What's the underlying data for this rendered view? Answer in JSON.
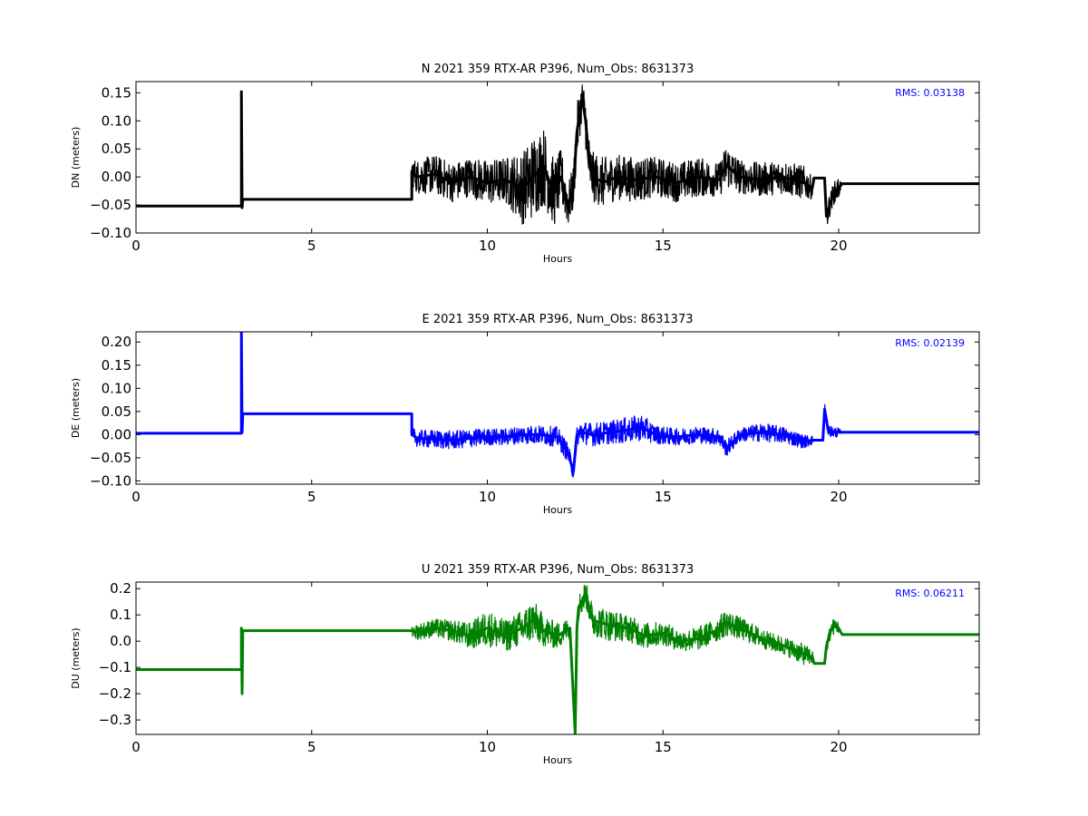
{
  "chart_data": [
    {
      "type": "line",
      "title": "N 2021 359 RTX-AR  P396, Num_Obs: 8631373",
      "xlabel": "Hours",
      "ylabel": "DN (meters)",
      "xlim": [
        0,
        24
      ],
      "ylim": [
        -0.1,
        0.17
      ],
      "xticks": [
        "0",
        "5",
        "10",
        "15",
        "20"
      ],
      "yticks": [
        "0.15",
        "0.10",
        "0.05",
        "0.00",
        "−0.05",
        "−0.10"
      ],
      "yticks_values": [
        0.15,
        0.1,
        0.05,
        0.0,
        -0.05,
        -0.1
      ],
      "color": "#000000",
      "annotation": "RMS:  0.03138",
      "annotation_color": "#0000ff",
      "series": [
        {
          "x": [
            0,
            3.0,
            3.0,
            3.02,
            3.04,
            3.06,
            7.85,
            7.85,
            8.0,
            8.5,
            9.0,
            9.5,
            10.0,
            10.5,
            11.0,
            11.3,
            11.6,
            11.9,
            12.1,
            12.3,
            12.45,
            12.55,
            12.7,
            12.8,
            12.9,
            13.0,
            13.3,
            13.7,
            14.2,
            14.8,
            15.4,
            16.0,
            16.6,
            16.8,
            17.2,
            17.8,
            18.4,
            19.0,
            19.25,
            19.3,
            19.6,
            19.65,
            19.75,
            19.85,
            20.0,
            20.1,
            20.15,
            24
          ],
          "y": [
            -0.052,
            -0.052,
            0.152,
            -0.055,
            -0.04,
            -0.04,
            -0.04,
            0.01,
            0.0,
            0.005,
            -0.01,
            0.0,
            -0.01,
            -0.005,
            -0.02,
            0.0,
            0.02,
            -0.03,
            0.0,
            -0.05,
            -0.02,
            0.08,
            0.14,
            0.1,
            0.02,
            0.0,
            -0.01,
            0.0,
            -0.005,
            0.0,
            -0.01,
            0.0,
            -0.005,
            0.02,
            0.0,
            -0.005,
            0.0,
            -0.01,
            -0.02,
            -0.002,
            -0.002,
            -0.07,
            -0.05,
            -0.03,
            -0.02,
            -0.012,
            -0.012,
            -0.012
          ],
          "envelope": [
            0,
            0,
            0,
            0,
            0,
            0,
            0,
            0.025,
            0.03,
            0.035,
            0.035,
            0.035,
            0.04,
            0.04,
            0.065,
            0.075,
            0.07,
            0.06,
            0.05,
            0.04,
            0.04,
            0.05,
            0.035,
            0.05,
            0.05,
            0.045,
            0.045,
            0.04,
            0.04,
            0.035,
            0.035,
            0.035,
            0.03,
            0.04,
            0.03,
            0.03,
            0.03,
            0.03,
            0.02,
            0,
            0,
            0.03,
            0.02,
            0.02,
            0.02,
            0,
            0,
            0
          ]
        }
      ]
    },
    {
      "type": "line",
      "title": "E 2021 359 RTX-AR  P396, Num_Obs: 8631373",
      "xlabel": "Hours",
      "ylabel": "DE (meters)",
      "xlim": [
        0,
        24
      ],
      "ylim": [
        -0.107,
        0.222
      ],
      "xticks": [
        "0",
        "5",
        "10",
        "15",
        "20"
      ],
      "yticks": [
        "0.20",
        "0.15",
        "0.10",
        "0.05",
        "0.00",
        "−0.05",
        "−0.10"
      ],
      "yticks_values": [
        0.2,
        0.15,
        0.1,
        0.05,
        0.0,
        -0.05,
        -0.1
      ],
      "color": "#0000ff",
      "annotation": "RMS:  0.02139",
      "annotation_color": "#0000ff",
      "series": [
        {
          "x": [
            0,
            3.0,
            3.0,
            3.02,
            3.04,
            3.06,
            7.85,
            7.85,
            8.0,
            8.5,
            9.0,
            9.5,
            10.0,
            10.5,
            11.0,
            11.5,
            12.0,
            12.3,
            12.45,
            12.55,
            12.7,
            13.0,
            13.5,
            14.0,
            14.4,
            14.8,
            15.4,
            16.0,
            16.6,
            16.8,
            17.2,
            17.8,
            18.4,
            19.0,
            19.25,
            19.3,
            19.55,
            19.6,
            19.7,
            19.85,
            20.0,
            20.1,
            20.15,
            24
          ],
          "y": [
            0.003,
            0.003,
            0.222,
            0.005,
            0.045,
            0.045,
            0.045,
            0.0,
            -0.008,
            -0.01,
            -0.012,
            -0.008,
            -0.005,
            -0.005,
            0.0,
            0.0,
            -0.005,
            -0.04,
            -0.08,
            0.0,
            0.005,
            0.0,
            0.005,
            0.01,
            0.015,
            0.0,
            -0.005,
            0.0,
            -0.005,
            -0.03,
            0.0,
            0.005,
            0.0,
            -0.015,
            -0.012,
            -0.012,
            -0.012,
            0.055,
            0.01,
            0.005,
            0.005,
            0.005,
            0.005,
            0.005
          ],
          "envelope": [
            0,
            0,
            0,
            0,
            0,
            0,
            0,
            0.015,
            0.018,
            0.02,
            0.02,
            0.02,
            0.018,
            0.018,
            0.02,
            0.02,
            0.022,
            0.02,
            0.02,
            0.025,
            0.025,
            0.025,
            0.025,
            0.028,
            0.028,
            0.02,
            0.018,
            0.018,
            0.018,
            0.018,
            0.015,
            0.02,
            0.018,
            0.015,
            0.01,
            0,
            0,
            0.015,
            0.012,
            0.012,
            0.01,
            0,
            0,
            0
          ]
        }
      ]
    },
    {
      "type": "line",
      "title": "U 2021 359 RTX-AR  P396, Num_Obs: 8631373",
      "xlabel": "Hours",
      "ylabel": "DU (meters)",
      "xlim": [
        0,
        24
      ],
      "ylim": [
        -0.355,
        0.225
      ],
      "xticks": [
        "0",
        "5",
        "10",
        "15",
        "20"
      ],
      "yticks": [
        "0.2",
        "0.1",
        "0.0",
        "−0.1",
        "−0.2",
        "−0.3"
      ],
      "yticks_values": [
        0.2,
        0.1,
        0.0,
        -0.1,
        -0.2,
        -0.3
      ],
      "color": "#008000",
      "annotation": "RMS:  0.06211",
      "annotation_color": "#0000ff",
      "series": [
        {
          "x": [
            0,
            3.0,
            3.0,
            3.02,
            3.04,
            3.06,
            7.85,
            7.85,
            8.0,
            8.5,
            9.0,
            9.5,
            10.0,
            10.5,
            11.0,
            11.3,
            11.6,
            12.0,
            12.35,
            12.5,
            12.55,
            12.6,
            12.8,
            13.0,
            13.5,
            14.0,
            14.5,
            15.0,
            15.5,
            16.0,
            16.5,
            16.8,
            17.0,
            17.5,
            18.0,
            18.5,
            19.0,
            19.25,
            19.3,
            19.6,
            19.65,
            19.8,
            19.95,
            20.1,
            20.15,
            24
          ],
          "y": [
            -0.108,
            -0.108,
            0.05,
            -0.2,
            0.04,
            0.04,
            0.04,
            0.04,
            0.035,
            0.05,
            0.04,
            0.02,
            0.05,
            0.02,
            0.05,
            0.08,
            0.04,
            0.02,
            0.05,
            -0.35,
            0.05,
            0.13,
            0.18,
            0.08,
            0.06,
            0.05,
            0.02,
            0.03,
            0.0,
            0.01,
            0.04,
            0.07,
            0.06,
            0.03,
            0.0,
            -0.02,
            -0.05,
            -0.06,
            -0.085,
            -0.085,
            -0.02,
            0.05,
            0.06,
            0.025,
            0.025,
            0.025
          ],
          "envelope": [
            0,
            0,
            0,
            0,
            0,
            0,
            0,
            0.02,
            0.03,
            0.035,
            0.04,
            0.05,
            0.07,
            0.06,
            0.07,
            0.08,
            0.06,
            0.05,
            0.04,
            0,
            0.04,
            0.05,
            0.05,
            0.06,
            0.06,
            0.05,
            0.05,
            0.045,
            0.04,
            0.045,
            0.045,
            0.05,
            0.045,
            0.04,
            0.035,
            0.035,
            0.04,
            0.03,
            0,
            0,
            0.03,
            0.03,
            0.03,
            0,
            0,
            0
          ]
        }
      ]
    }
  ]
}
